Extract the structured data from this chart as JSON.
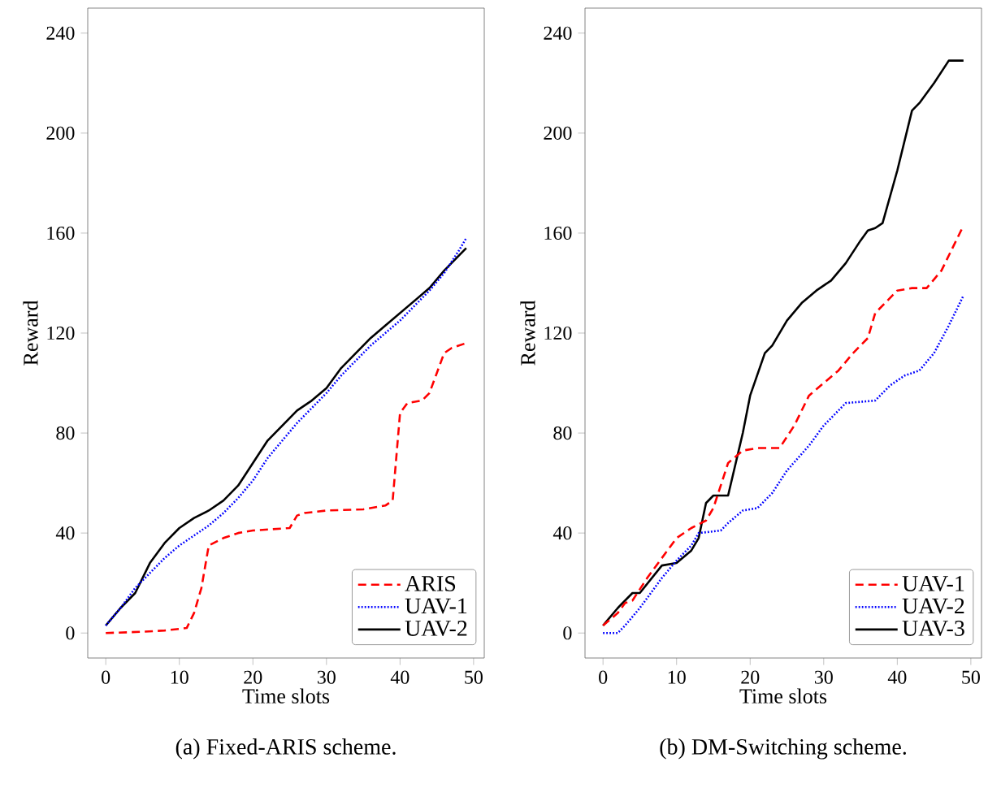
{
  "chart_data": [
    {
      "type": "line",
      "title": "(a) Fixed-ARIS scheme.",
      "xlabel": "Time slots",
      "ylabel": "Reward",
      "xlim": [
        -2.45,
        51.45
      ],
      "ylim": [
        -10,
        250
      ],
      "xticks": [
        0,
        10,
        20,
        30,
        40,
        50
      ],
      "yticks": [
        0,
        40,
        80,
        120,
        160,
        200,
        240
      ],
      "legend": "bottom right",
      "grid": false,
      "series": [
        {
          "name": "ARIS",
          "color": "#ff0000",
          "line_style": "dashed",
          "x": [
            0,
            5,
            8,
            11,
            12,
            13,
            14,
            16,
            18,
            20,
            25,
            26,
            27,
            30,
            35,
            38,
            39,
            40,
            41,
            43,
            44,
            46,
            47,
            49
          ],
          "values": [
            0,
            0.5,
            1,
            2,
            8,
            18,
            35,
            38,
            40,
            41,
            42,
            47,
            48,
            49,
            49.5,
            51,
            53,
            88,
            92,
            93,
            96,
            112,
            114,
            116
          ]
        },
        {
          "name": "UAV-1",
          "color": "#0000ff",
          "line_style": "dotted",
          "x": [
            0,
            2,
            4,
            6,
            8,
            10,
            12,
            14,
            16,
            18,
            20,
            22,
            24,
            26,
            28,
            30,
            32,
            34,
            36,
            38,
            40,
            42,
            44,
            46,
            48,
            49
          ],
          "values": [
            3,
            10,
            18,
            24,
            30,
            35,
            39,
            43,
            48,
            54,
            61,
            70,
            77,
            84,
            90,
            96,
            103,
            109,
            115,
            120,
            125,
            131,
            137,
            144,
            153,
            158
          ]
        },
        {
          "name": "UAV-2",
          "color": "#000000",
          "line_style": "solid",
          "x": [
            0,
            2,
            4,
            6,
            8,
            10,
            12,
            14,
            16,
            18,
            20,
            22,
            24,
            26,
            28,
            30,
            32,
            34,
            36,
            38,
            40,
            42,
            44,
            46,
            48,
            49
          ],
          "values": [
            3,
            10,
            16,
            28,
            36,
            42,
            46,
            49,
            53,
            59,
            68,
            77,
            83,
            89,
            93,
            98,
            106,
            112,
            118,
            123,
            128,
            133,
            138,
            145,
            151,
            154
          ]
        }
      ]
    },
    {
      "type": "line",
      "title": "(b) DM-Switching scheme.",
      "xlabel": "Time slots",
      "ylabel": "Reward",
      "xlim": [
        -2.45,
        51.45
      ],
      "ylim": [
        -10,
        250
      ],
      "xticks": [
        0,
        10,
        20,
        30,
        40,
        50
      ],
      "yticks": [
        0,
        40,
        80,
        120,
        160,
        200,
        240
      ],
      "legend": "bottom right",
      "grid": false,
      "series": [
        {
          "name": "UAV-1",
          "color": "#ff0000",
          "line_style": "dashed",
          "x": [
            0,
            2,
            3,
            4,
            6,
            8,
            10,
            12,
            14,
            15,
            17,
            19,
            21,
            24,
            26,
            28,
            30,
            32,
            34,
            36,
            37,
            40,
            42,
            44,
            46,
            49
          ],
          "values": [
            3,
            8,
            12,
            13,
            22,
            30,
            38,
            42,
            45,
            50,
            68,
            73,
            74,
            74,
            83,
            95,
            100,
            105,
            112,
            118,
            128,
            137,
            138,
            138,
            145,
            163
          ]
        },
        {
          "name": "UAV-2",
          "color": "#0000ff",
          "line_style": "dotted",
          "x": [
            0,
            2,
            3,
            5,
            8,
            10,
            12,
            13,
            16,
            17,
            19,
            21,
            23,
            25,
            28,
            30,
            33,
            37,
            39,
            41,
            43,
            45,
            47,
            49
          ],
          "values": [
            0,
            0,
            3,
            10,
            22,
            29,
            35,
            40,
            41,
            44,
            49,
            50,
            56,
            65,
            75,
            83,
            92,
            93,
            99,
            103,
            105,
            112,
            123,
            135
          ]
        },
        {
          "name": "UAV-3",
          "color": "#000000",
          "line_style": "solid",
          "x": [
            0,
            2,
            4,
            5,
            8,
            10,
            12,
            13,
            14,
            15,
            17,
            19,
            20,
            22,
            23,
            25,
            27,
            29,
            31,
            33,
            35,
            36,
            37,
            38,
            40,
            42,
            43,
            45,
            47,
            49
          ],
          "values": [
            3,
            10,
            16,
            16,
            27,
            28,
            33,
            38,
            52,
            55,
            55,
            80,
            95,
            112,
            115,
            125,
            132,
            137,
            141,
            148,
            157,
            161,
            162,
            164,
            185,
            209,
            212,
            220,
            229,
            229
          ]
        }
      ]
    }
  ]
}
